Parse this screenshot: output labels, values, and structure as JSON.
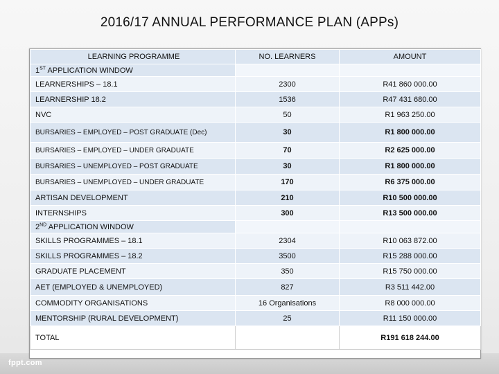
{
  "title": "2016/17 ANNUAL PERFORMANCE PLAN (APPs)",
  "table": {
    "headers": {
      "programme": "LEARNING PROGRAMME",
      "learners": "NO. LEARNERS",
      "amount": "AMOUNT"
    },
    "section1": {
      "num": "1",
      "sup": "ST",
      "label": " APPLICATION WINDOW"
    },
    "rows1": [
      {
        "programme": "LEARNERSHIPS – 18.1",
        "learners": "2300",
        "amount": "R41 860 000.00"
      },
      {
        "programme": "LEARNERSHIP 18.2",
        "learners": "1536",
        "amount": "R47 431 680.00"
      },
      {
        "programme": "NVC",
        "learners": "50",
        "amount": "R1 963 250.00"
      },
      {
        "programme": "BURSARIES – EMPLOYED – POST GRADUATE (Dec)",
        "learners": "30",
        "amount": "R1 800 000.00"
      },
      {
        "programme": "BURSARIES – EMPLOYED – UNDER GRADUATE",
        "learners": "70",
        "amount": "R2 625 000.00"
      },
      {
        "programme": "BURSARIES – UNEMPLOYED – POST GRADUATE",
        "learners": "30",
        "amount": "R1 800 000.00"
      },
      {
        "programme": "BURSARIES – UNEMPLOYED – UNDER GRADUATE",
        "learners": "170",
        "amount": "R6 375 000.00"
      },
      {
        "programme": "ARTISAN DEVELOPMENT",
        "learners": "210",
        "amount": "R10 500 000.00"
      },
      {
        "programme": "INTERNSHIPS",
        "learners": "300",
        "amount": "R13 500 000.00"
      }
    ],
    "section2": {
      "num": "2",
      "sup": "ND",
      "label": " APPLICATION WINDOW"
    },
    "rows2": [
      {
        "programme": "SKILLS PROGRAMMES – 18.1",
        "learners": "2304",
        "amount": "R10 063 872.00"
      },
      {
        "programme": "SKILLS PROGRAMMES – 18.2",
        "learners": "3500",
        "amount": "R15 288 000.00"
      },
      {
        "programme": "GRADUATE PLACEMENT",
        "learners": "350",
        "amount": "R15 750 000.00"
      },
      {
        "programme": "AET (EMPLOYED & UNEMPLOYED)",
        "learners": "827",
        "amount": "R3 511 442.00"
      },
      {
        "programme": "COMMODITY ORGANISATIONS",
        "learners": "16 Organisations",
        "amount": "R8 000 000.00"
      },
      {
        "programme": "MENTORSHIP (RURAL DEVELOPMENT)",
        "learners": "25",
        "amount": "R11 150 000.00"
      }
    ],
    "total": {
      "label": "TOTAL",
      "learners": "",
      "amount": "R191 618 244.00"
    }
  },
  "footer": {
    "logo": "fppt.com"
  }
}
